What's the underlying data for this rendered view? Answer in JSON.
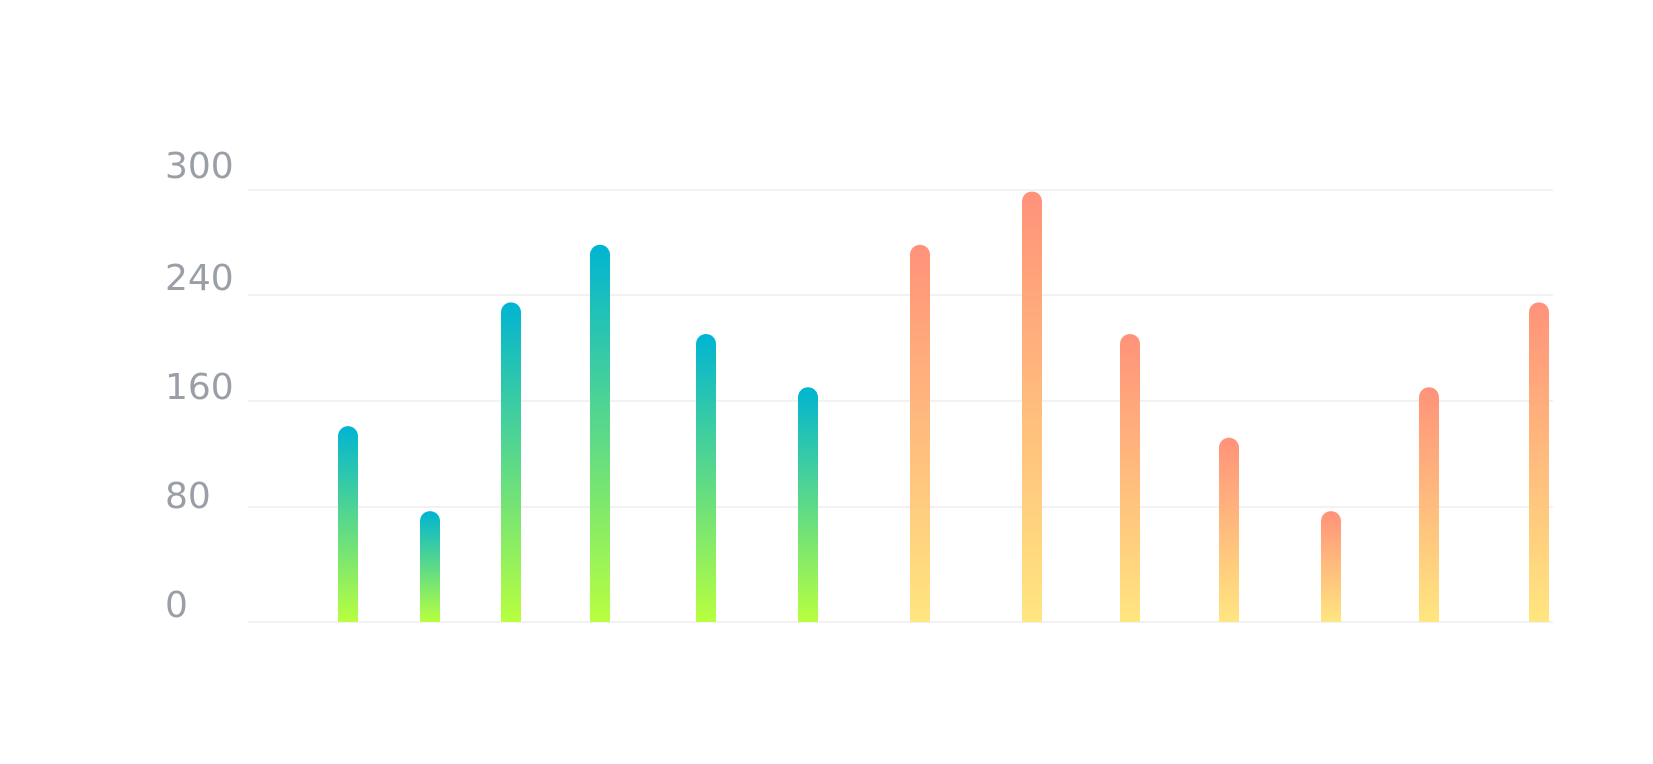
{
  "colors": {
    "background": "#ffffff",
    "tick_label": "#9a9ea6",
    "grid": "#eeeeee",
    "group_a_top": "#00b4d2",
    "group_a_bottom": "#b8ff3f",
    "group_b_top": "#ff927a",
    "group_b_bottom": "#ffe680"
  },
  "chart_data": {
    "type": "bar",
    "title": "",
    "xlabel": "",
    "ylabel": "",
    "ylim": [
      0,
      300
    ],
    "y_ticks": [
      "0",
      "80",
      "160",
      "240",
      "300"
    ],
    "grid": true,
    "legend": "none",
    "bars": [
      {
        "value": 136,
        "group": "a"
      },
      {
        "value": 77,
        "group": "a"
      },
      {
        "value": 222,
        "group": "a"
      },
      {
        "value": 262,
        "group": "a"
      },
      {
        "value": 200,
        "group": "a"
      },
      {
        "value": 163,
        "group": "a"
      },
      {
        "value": 262,
        "group": "b"
      },
      {
        "value": 299,
        "group": "b"
      },
      {
        "value": 200,
        "group": "b"
      },
      {
        "value": 128,
        "group": "b"
      },
      {
        "value": 77,
        "group": "b"
      },
      {
        "value": 163,
        "group": "b"
      },
      {
        "value": 222,
        "group": "b"
      }
    ]
  }
}
